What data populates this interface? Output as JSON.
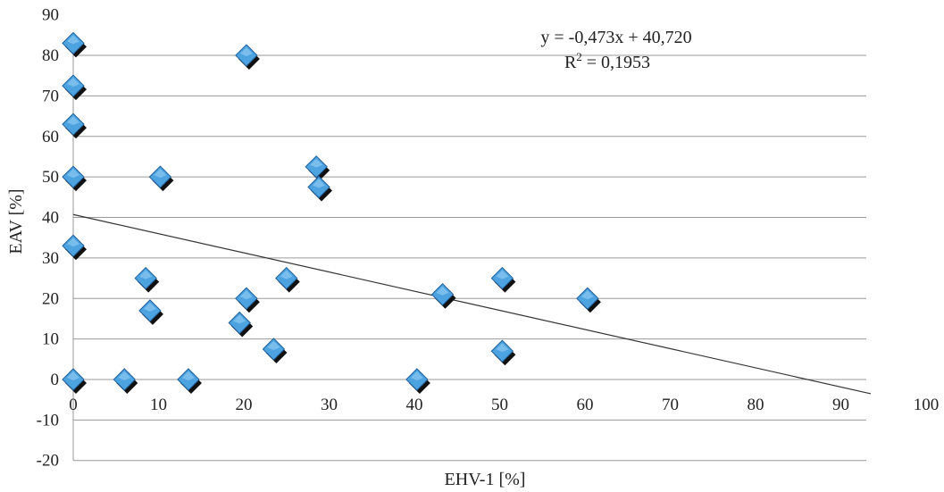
{
  "chart_data": {
    "type": "scatter",
    "xlabel": "EHV-1 [%]",
    "ylabel": "EAV [%]",
    "xlim": [
      0,
      100
    ],
    "ylim": [
      -20,
      90
    ],
    "x_ticks": [
      "0",
      "10",
      "20",
      "30",
      "40",
      "50",
      "60",
      "70",
      "80",
      "90",
      "100"
    ],
    "y_ticks": [
      "90",
      "80",
      "70",
      "60",
      "50",
      "40",
      "30",
      "20",
      "10",
      "0",
      "-10",
      "-20"
    ],
    "grid": true,
    "legend": "none",
    "marker": "diamond",
    "marker_color": "#4ca3e0",
    "points": [
      {
        "x": 0,
        "y": 83
      },
      {
        "x": 0,
        "y": 72.5
      },
      {
        "x": 0,
        "y": 63
      },
      {
        "x": 0,
        "y": 50
      },
      {
        "x": 0,
        "y": 33
      },
      {
        "x": 0,
        "y": 0
      },
      {
        "x": 6,
        "y": 0
      },
      {
        "x": 8.5,
        "y": 25
      },
      {
        "x": 9,
        "y": 17
      },
      {
        "x": 10.2,
        "y": 50
      },
      {
        "x": 13.5,
        "y": 0
      },
      {
        "x": 19.5,
        "y": 14
      },
      {
        "x": 20.3,
        "y": 20
      },
      {
        "x": 20.3,
        "y": 80
      },
      {
        "x": 23.5,
        "y": 7.5
      },
      {
        "x": 25,
        "y": 25
      },
      {
        "x": 28.5,
        "y": 52.5
      },
      {
        "x": 28.8,
        "y": 47.5
      },
      {
        "x": 40.3,
        "y": 0
      },
      {
        "x": 43.3,
        "y": 21
      },
      {
        "x": 50.3,
        "y": 25
      },
      {
        "x": 50.3,
        "y": 7
      },
      {
        "x": 60.3,
        "y": 20
      }
    ],
    "trendline": {
      "slope": -0.473,
      "intercept": 40.72,
      "equation": "y = -0,473x + 40,720",
      "r2_label": "R",
      "r2_exp": "2",
      "r2_value": " = 0,1953"
    }
  }
}
